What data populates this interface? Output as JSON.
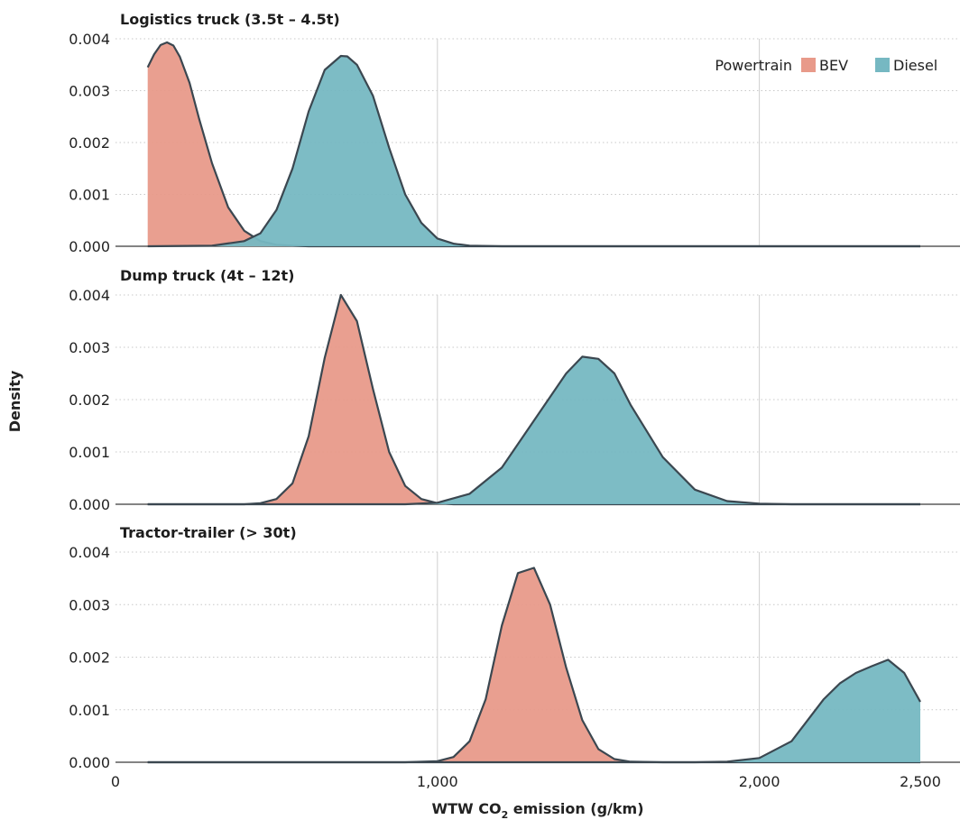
{
  "chart_data": {
    "type": "area",
    "xlabel": "WTW CO2 emission (g/km)",
    "xlabel_main": "WTW CO",
    "xlabel_sub": "2",
    "xlabel_tail": " emission (g/km)",
    "ylabel": "Density",
    "xlim": [
      0,
      2500
    ],
    "ylim": [
      0,
      0.004
    ],
    "x_ticks": [
      0,
      1000,
      2000,
      2500
    ],
    "x_tick_labels": [
      "0",
      "1,000",
      "2,000",
      "2,500"
    ],
    "y_ticks": [
      0,
      0.001,
      0.002,
      0.003,
      0.004
    ],
    "y_tick_labels": [
      "0.000",
      "0.001",
      "0.002",
      "0.003",
      "0.004"
    ],
    "legend": {
      "title": "Powertrain",
      "position": "top-right",
      "items": [
        {
          "name": "BEV",
          "color": "#e89a8a"
        },
        {
          "name": "Diesel",
          "color": "#76b8c2"
        }
      ]
    },
    "panels": [
      {
        "title": "Logistics truck (3.5t – 4.5t)",
        "series": [
          {
            "name": "BEV",
            "x": [
              100,
              120,
              140,
              160,
              180,
              200,
              230,
              260,
              300,
              350,
              400,
              450,
              500,
              550,
              600,
              700,
              800,
              1000,
              1500,
              2000,
              2500
            ],
            "y": [
              0.00345,
              0.0037,
              0.00388,
              0.00393,
              0.00387,
              0.00365,
              0.00315,
              0.00245,
              0.0016,
              0.00075,
              0.0003,
              0.0001,
              3e-05,
              1e-05,
              0,
              0,
              0,
              0,
              0,
              0,
              0
            ]
          },
          {
            "name": "Diesel",
            "x": [
              100,
              300,
              400,
              450,
              500,
              550,
              600,
              650,
              700,
              720,
              750,
              800,
              850,
              900,
              950,
              1000,
              1050,
              1100,
              1200,
              1500,
              2000,
              2500
            ],
            "y": [
              0,
              1e-05,
              0.0001,
              0.00025,
              0.0007,
              0.0015,
              0.0026,
              0.0034,
              0.00367,
              0.00366,
              0.0035,
              0.0029,
              0.0019,
              0.001,
              0.00045,
              0.00015,
              5e-05,
              1e-05,
              0,
              0,
              0,
              0
            ]
          }
        ]
      },
      {
        "title": "Dump truck (4t – 12t)",
        "series": [
          {
            "name": "BEV",
            "x": [
              100,
              400,
              450,
              500,
              550,
              600,
              650,
              700,
              750,
              800,
              850,
              900,
              950,
              1000,
              1050,
              1100,
              1500,
              2000,
              2500
            ],
            "y": [
              0,
              0,
              2e-05,
              0.0001,
              0.0004,
              0.0013,
              0.0028,
              0.004,
              0.0035,
              0.0022,
              0.001,
              0.00035,
              0.0001,
              2e-05,
              0,
              0,
              0,
              0,
              0
            ]
          },
          {
            "name": "Diesel",
            "x": [
              100,
              900,
              1000,
              1100,
              1200,
              1300,
              1400,
              1450,
              1500,
              1550,
              1600,
              1700,
              1800,
              1900,
              2000,
              2100,
              2500
            ],
            "y": [
              0,
              0,
              3e-05,
              0.0002,
              0.0007,
              0.0016,
              0.0025,
              0.00282,
              0.00278,
              0.0025,
              0.0019,
              0.0009,
              0.00028,
              6e-05,
              1e-05,
              0,
              0
            ]
          }
        ]
      },
      {
        "title": "Tractor-trailer (> 30t)",
        "series": [
          {
            "name": "BEV",
            "x": [
              100,
              900,
              1000,
              1050,
              1100,
              1150,
              1200,
              1250,
              1300,
              1350,
              1400,
              1450,
              1500,
              1550,
              1600,
              1700,
              2000,
              2500
            ],
            "y": [
              0,
              0,
              2e-05,
              0.0001,
              0.0004,
              0.0012,
              0.0026,
              0.0036,
              0.0037,
              0.003,
              0.0018,
              0.0008,
              0.00025,
              6e-05,
              1e-05,
              0,
              0,
              0
            ]
          },
          {
            "name": "Diesel",
            "x": [
              100,
              1800,
              1900,
              2000,
              2100,
              2150,
              2200,
              2250,
              2300,
              2350,
              2400,
              2450,
              2500
            ],
            "y": [
              0,
              0,
              1e-05,
              8e-05,
              0.0004,
              0.0008,
              0.0012,
              0.0015,
              0.0017,
              0.00183,
              0.00195,
              0.0017,
              0.00115
            ]
          }
        ]
      }
    ]
  }
}
